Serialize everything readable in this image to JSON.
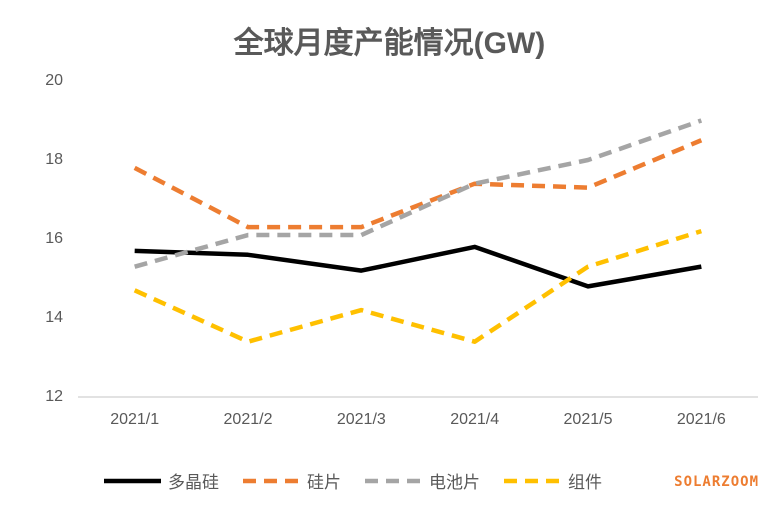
{
  "chart": {
    "title": "全球月度产能情况(GW)",
    "watermark": "SOLARZOOM"
  },
  "chart_data": {
    "type": "line",
    "title": "全球月度产能情况(GW)",
    "categories": [
      "2021/1",
      "2021/2",
      "2021/3",
      "2021/4",
      "2021/5",
      "2021/6"
    ],
    "series": [
      {
        "name": "多晶硅",
        "color": "#000000",
        "dash": "solid",
        "values": [
          15.7,
          15.6,
          15.2,
          15.8,
          14.8,
          15.3
        ]
      },
      {
        "name": "硅片",
        "color": "#ED7D31",
        "dash": "dashed",
        "values": [
          17.8,
          16.3,
          16.3,
          17.4,
          17.3,
          18.5
        ]
      },
      {
        "name": "电池片",
        "color": "#A5A5A5",
        "dash": "dashed",
        "values": [
          15.3,
          16.1,
          16.1,
          17.4,
          18.0,
          19.0
        ]
      },
      {
        "name": "组件",
        "color": "#FFC000",
        "dash": "dashed",
        "values": [
          14.7,
          13.4,
          14.2,
          13.4,
          15.3,
          16.2
        ]
      }
    ],
    "xlabel": "",
    "ylabel": "",
    "ylim": [
      12,
      20
    ],
    "yticks": [
      12,
      14,
      16,
      18,
      20
    ],
    "grid": false,
    "legend_position": "bottom",
    "axis_color": "#D9D9D9",
    "label_color": "#595959"
  }
}
